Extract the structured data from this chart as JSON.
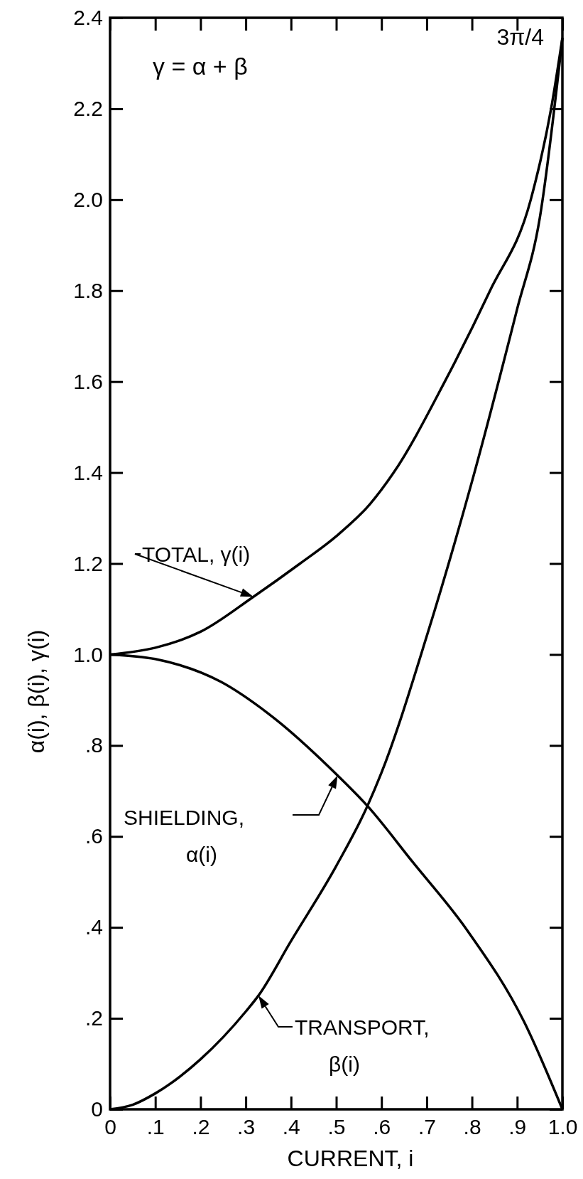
{
  "chart_data": {
    "type": "line",
    "xlabel": "CURRENT, i",
    "ylabel": "α(i), β(i), γ(i)",
    "xlim": [
      0,
      1
    ],
    "ylim": [
      0,
      2.4
    ],
    "xticks": [
      0,
      {
        "value": 0.1,
        "label": ".1"
      },
      {
        "value": 0.2,
        "label": ".2"
      },
      {
        "value": 0.3,
        "label": ".3"
      },
      {
        "value": 0.4,
        "label": ".4"
      },
      {
        "value": 0.5,
        "label": ".5"
      },
      {
        "value": 0.6,
        "label": ".6"
      },
      {
        "value": 0.7,
        "label": ".7"
      },
      {
        "value": 0.8,
        "label": ".8"
      },
      {
        "value": 0.9,
        "label": ".9"
      },
      {
        "value": 1,
        "label": "1.0"
      }
    ],
    "yticks": [
      0,
      {
        "value": 0.2,
        "label": ".2"
      },
      {
        "value": 0.4,
        "label": ".4"
      },
      {
        "value": 0.6,
        "label": ".6"
      },
      {
        "value": 0.8,
        "label": ".8"
      },
      {
        "value": 1,
        "label": "1.0"
      },
      {
        "value": 1.2,
        "label": "1.2"
      },
      {
        "value": 1.4,
        "label": "1.4"
      },
      {
        "value": 1.6,
        "label": "1.6"
      },
      {
        "value": 1.8,
        "label": "1.8"
      },
      {
        "value": 2,
        "label": "2.0"
      },
      {
        "value": 2.2,
        "label": "2.2"
      },
      {
        "value": 2.4,
        "label": "2.4"
      }
    ],
    "grid": false,
    "legend": "left",
    "marker": "none",
    "line_style": "solid",
    "series": [
      {
        "name": "TOTAL, γ(i)",
        "color": "#000000",
        "x": [
          0,
          0.1,
          0.2,
          0.317,
          0.42,
          0.5,
          0.574,
          0.627,
          0.74,
          0.84,
          0.93,
          0.975,
          1
        ],
        "values": [
          1,
          1.015,
          1.05,
          1.127,
          1.2,
          1.26,
          1.33,
          1.4,
          1.6,
          1.8,
          2.0,
          2.2,
          2.356
        ]
      },
      {
        "name": "SHIELDING, α(i)",
        "color": "#000000",
        "x": [
          0,
          0.1,
          0.245,
          0.35,
          0.503,
          0.569,
          0.668,
          0.79,
          0.915,
          1
        ],
        "values": [
          1,
          0.99,
          0.94,
          0.87,
          0.734,
          0.667,
          0.545,
          0.393,
          0.193,
          0
        ]
      },
      {
        "name": "TRANSPORT, β(i)",
        "color": "#000000",
        "x": [
          0,
          0.05,
          0.1,
          0.2,
          0.3,
          0.328,
          0.4,
          0.5,
          0.569,
          0.6,
          0.7,
          0.8,
          0.9,
          0.95,
          1
        ],
        "values": [
          0,
          0.01,
          0.035,
          0.11,
          0.215,
          0.25,
          0.37,
          0.535,
          0.667,
          0.74,
          1.04,
          1.38,
          1.76,
          1.96,
          2.356
        ]
      }
    ],
    "annotations": [
      "γ = α + β",
      {
        "text": "3π/4",
        "x": 1,
        "y": 2.356
      }
    ]
  }
}
